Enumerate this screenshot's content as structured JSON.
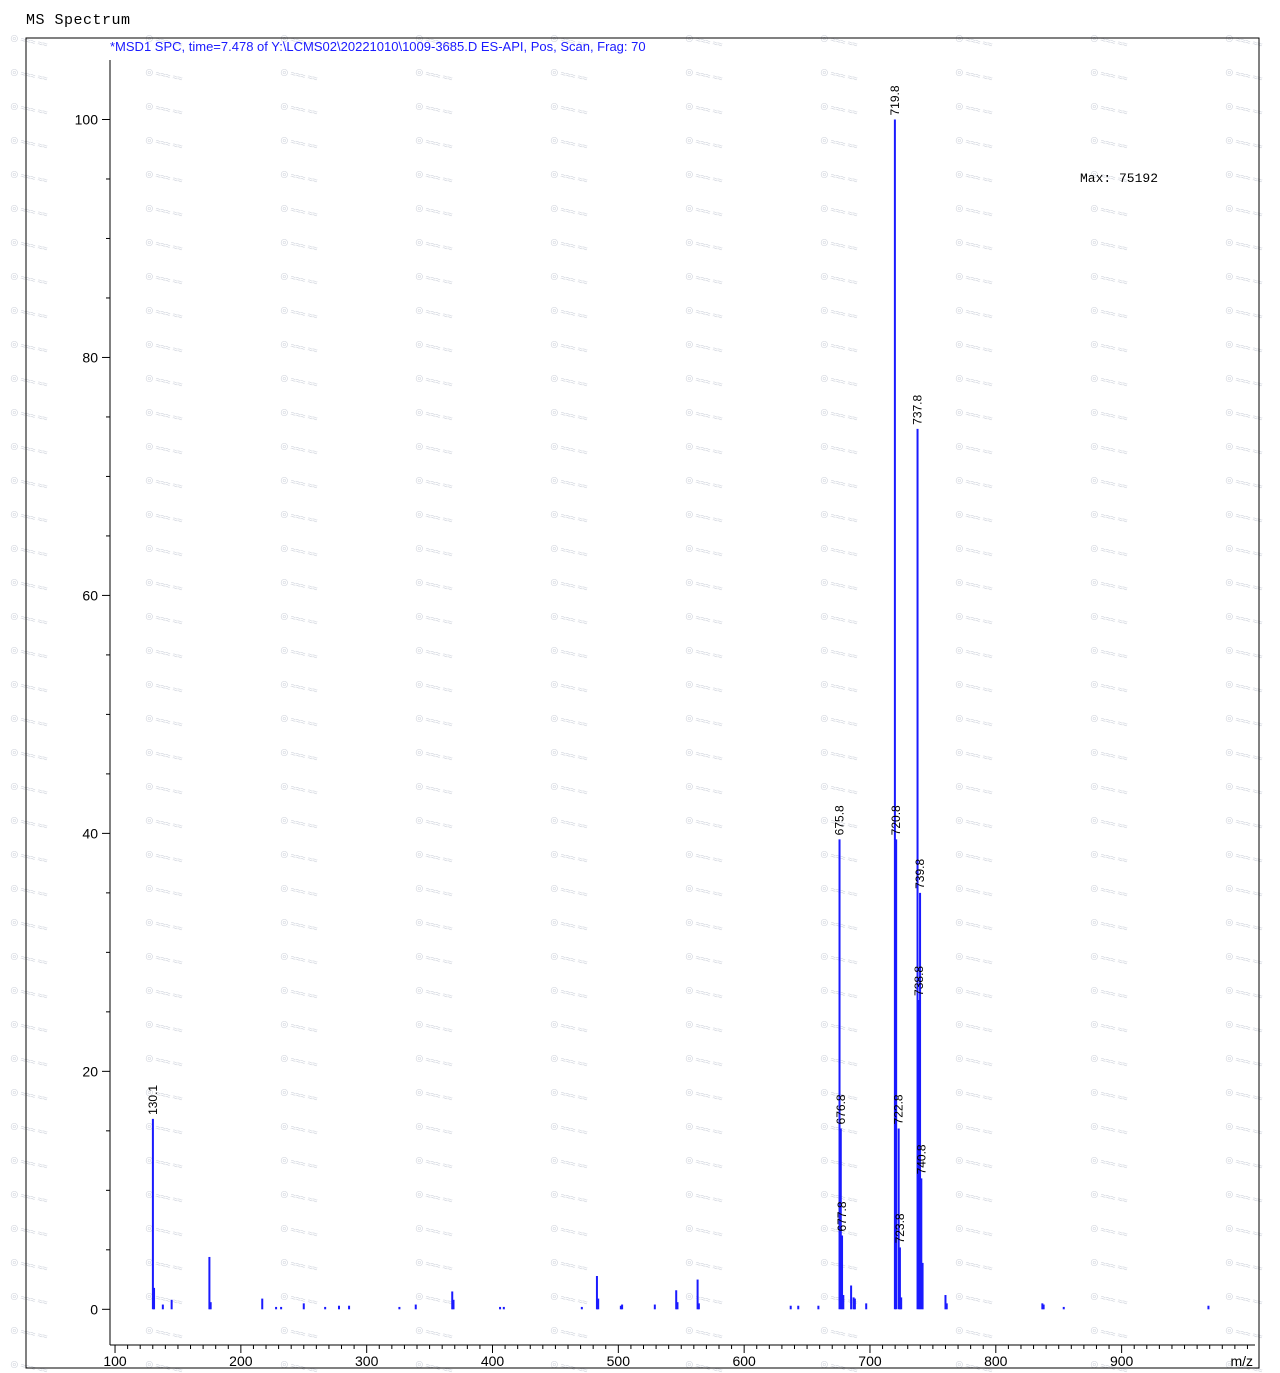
{
  "header": {
    "title": "MS  Spectrum"
  },
  "chart_data": {
    "type": "bar",
    "title": "MS  Spectrum",
    "subtitle": "*MSD1 SPC, time=7.478 of Y:\\LCMS02\\20221010\\1009-3685.D    ES-API, Pos, Scan, Frag: 70",
    "max_text": "Max:  75192",
    "xlabel": "m/z",
    "ylabel": "",
    "xlim": [
      96,
      1006
    ],
    "ylim": [
      -3,
      105
    ],
    "x_ticks": [
      100,
      200,
      300,
      400,
      500,
      600,
      700,
      800,
      900
    ],
    "y_ticks": [
      0,
      20,
      40,
      60,
      80,
      100
    ],
    "x_minor_step": 10,
    "y_minor_step": 5,
    "bar_color": "#1a1aff",
    "peaks": [
      {
        "x": 130.1,
        "y": 16.0,
        "label": "130.1"
      },
      {
        "x": 131.0,
        "y": 1.8
      },
      {
        "x": 138,
        "y": 0.4
      },
      {
        "x": 145,
        "y": 0.8
      },
      {
        "x": 175,
        "y": 4.4
      },
      {
        "x": 176,
        "y": 0.6
      },
      {
        "x": 217,
        "y": 0.9
      },
      {
        "x": 228,
        "y": 0.2
      },
      {
        "x": 232,
        "y": 0.2
      },
      {
        "x": 250,
        "y": 0.5
      },
      {
        "x": 267,
        "y": 0.2
      },
      {
        "x": 278,
        "y": 0.3
      },
      {
        "x": 286,
        "y": 0.3
      },
      {
        "x": 326,
        "y": 0.2
      },
      {
        "x": 339,
        "y": 0.4
      },
      {
        "x": 368,
        "y": 1.5
      },
      {
        "x": 369,
        "y": 0.8
      },
      {
        "x": 406,
        "y": 0.2
      },
      {
        "x": 409,
        "y": 0.2
      },
      {
        "x": 471,
        "y": 0.2
      },
      {
        "x": 483,
        "y": 2.8
      },
      {
        "x": 484,
        "y": 0.9
      },
      {
        "x": 502,
        "y": 0.3
      },
      {
        "x": 503,
        "y": 0.4
      },
      {
        "x": 529,
        "y": 0.4
      },
      {
        "x": 546,
        "y": 1.6
      },
      {
        "x": 547,
        "y": 0.6
      },
      {
        "x": 563,
        "y": 2.5
      },
      {
        "x": 564,
        "y": 0.5
      },
      {
        "x": 637,
        "y": 0.3
      },
      {
        "x": 643,
        "y": 0.3
      },
      {
        "x": 659,
        "y": 0.3
      },
      {
        "x": 675.8,
        "y": 39.5,
        "label": "675.8"
      },
      {
        "x": 676.8,
        "y": 15.2,
        "label": "676.8"
      },
      {
        "x": 677.8,
        "y": 6.2,
        "label": "677.8"
      },
      {
        "x": 678.8,
        "y": 1.2
      },
      {
        "x": 685,
        "y": 2.0
      },
      {
        "x": 687,
        "y": 1.0
      },
      {
        "x": 688,
        "y": 0.9
      },
      {
        "x": 697,
        "y": 0.5
      },
      {
        "x": 719.8,
        "y": 100.0,
        "label": "719.8"
      },
      {
        "x": 720.8,
        "y": 39.5,
        "label": "720.8"
      },
      {
        "x": 722.8,
        "y": 15.2,
        "label": "722.8"
      },
      {
        "x": 723.8,
        "y": 5.2,
        "label": "723.8"
      },
      {
        "x": 724.8,
        "y": 1.0
      },
      {
        "x": 737.8,
        "y": 74.0,
        "label": "737.8"
      },
      {
        "x": 738.8,
        "y": 26.0,
        "label": "738.8"
      },
      {
        "x": 739.8,
        "y": 35.0,
        "label": "739.8"
      },
      {
        "x": 740.8,
        "y": 11.0,
        "label": "740.8"
      },
      {
        "x": 741.8,
        "y": 3.9
      },
      {
        "x": 760,
        "y": 1.2
      },
      {
        "x": 761,
        "y": 0.5
      },
      {
        "x": 837,
        "y": 0.5
      },
      {
        "x": 838,
        "y": 0.4
      },
      {
        "x": 854,
        "y": 0.2
      },
      {
        "x": 969,
        "y": 0.3
      }
    ]
  }
}
